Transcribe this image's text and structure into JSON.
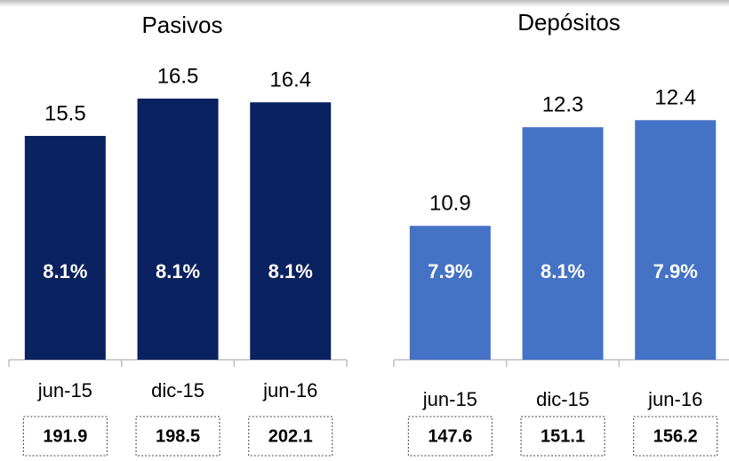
{
  "chart_data": [
    {
      "type": "bar",
      "title": "Pasivos",
      "categories": [
        "jun-15",
        "dic-15",
        "jun-16"
      ],
      "values": [
        15.5,
        16.5,
        16.4
      ],
      "inner_labels": [
        "8.1%",
        "8.1%",
        "8.1%"
      ],
      "totals": [
        191.9,
        198.5,
        202.1
      ],
      "color": "#0b2260",
      "ylim": [
        9.5,
        18
      ]
    },
    {
      "type": "bar",
      "title": "Depósitos",
      "categories": [
        "jun-15",
        "dic-15",
        "jun-16"
      ],
      "values": [
        10.9,
        12.3,
        12.4
      ],
      "inner_labels": [
        "7.9%",
        "8.1%",
        "7.9%"
      ],
      "totals": [
        147.6,
        151.1,
        156.2
      ],
      "color": "#4472c4",
      "ylim": [
        9,
        13.5
      ]
    }
  ]
}
